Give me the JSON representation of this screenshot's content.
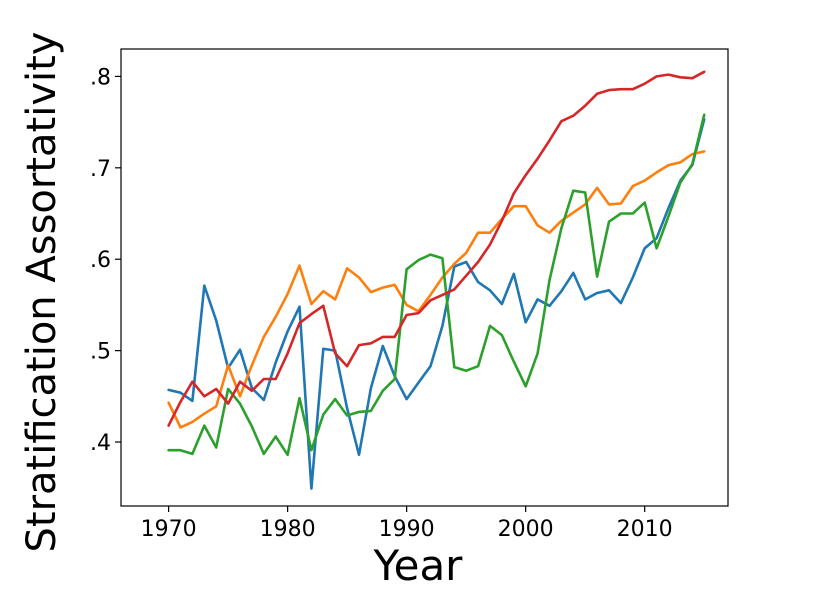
{
  "chart_data": {
    "type": "line",
    "title": "",
    "xlabel": "Year",
    "ylabel": "Stratification Assortativity",
    "xlim": [
      1966,
      2017
    ],
    "ylim": [
      0.33,
      0.83
    ],
    "xticks": [
      1970,
      1980,
      1990,
      2000,
      2010
    ],
    "xtick_labels": [
      "1970",
      "1980",
      "1990",
      "2000",
      "2010"
    ],
    "yticks": [
      0.4,
      0.5,
      0.6,
      0.7,
      0.8
    ],
    "ytick_labels": [
      ".4",
      ".5",
      ".6",
      ".7",
      ".8"
    ],
    "grid": false,
    "legend": "none",
    "x": [
      1970,
      1971,
      1972,
      1973,
      1974,
      1975,
      1976,
      1977,
      1978,
      1979,
      1980,
      1981,
      1982,
      1983,
      1984,
      1985,
      1986,
      1987,
      1988,
      1989,
      1990,
      1991,
      1992,
      1993,
      1994,
      1995,
      1996,
      1997,
      1998,
      1999,
      2000,
      2001,
      2002,
      2003,
      2004,
      2005,
      2006,
      2007,
      2008,
      2009,
      2010,
      2011,
      2012,
      2013,
      2014,
      2015
    ],
    "series": [
      {
        "color": "#1f77b4",
        "values": [
          0.457,
          0.454,
          0.445,
          0.571,
          0.533,
          0.481,
          0.501,
          0.459,
          0.446,
          0.487,
          0.521,
          0.548,
          0.349,
          0.502,
          0.5,
          0.437,
          0.386,
          0.459,
          0.505,
          0.472,
          0.447,
          0.465,
          0.483,
          0.527,
          0.592,
          0.597,
          0.575,
          0.566,
          0.551,
          0.584,
          0.531,
          0.556,
          0.549,
          0.565,
          0.585,
          0.556,
          0.563,
          0.566,
          0.552,
          0.58,
          0.612,
          0.623,
          0.656,
          0.686,
          0.703,
          0.753
        ]
      },
      {
        "color": "#ff7f0e",
        "values": [
          0.443,
          0.416,
          0.422,
          0.431,
          0.439,
          0.484,
          0.45,
          0.484,
          0.515,
          0.537,
          0.562,
          0.593,
          0.551,
          0.565,
          0.556,
          0.59,
          0.58,
          0.564,
          0.569,
          0.572,
          0.55,
          0.543,
          0.561,
          0.58,
          0.595,
          0.607,
          0.629,
          0.629,
          0.644,
          0.658,
          0.658,
          0.637,
          0.629,
          0.642,
          0.651,
          0.66,
          0.678,
          0.66,
          0.661,
          0.68,
          0.686,
          0.695,
          0.703,
          0.706,
          0.715,
          0.718
        ]
      },
      {
        "color": "#2ca02c",
        "values": [
          0.391,
          0.391,
          0.387,
          0.418,
          0.394,
          0.458,
          0.442,
          0.417,
          0.387,
          0.406,
          0.386,
          0.448,
          0.391,
          0.43,
          0.447,
          0.429,
          0.433,
          0.434,
          0.456,
          0.469,
          0.589,
          0.599,
          0.605,
          0.601,
          0.482,
          0.478,
          0.483,
          0.527,
          0.517,
          0.488,
          0.461,
          0.497,
          0.577,
          0.634,
          0.675,
          0.673,
          0.581,
          0.641,
          0.65,
          0.65,
          0.662,
          0.612,
          0.647,
          0.684,
          0.704,
          0.758
        ]
      },
      {
        "color": "#d62728",
        "values": [
          0.418,
          0.444,
          0.466,
          0.45,
          0.458,
          0.442,
          0.466,
          0.456,
          0.469,
          0.469,
          0.497,
          0.53,
          0.54,
          0.549,
          0.497,
          0.483,
          0.506,
          0.508,
          0.515,
          0.515,
          0.539,
          0.541,
          0.555,
          0.561,
          0.567,
          0.582,
          0.597,
          0.616,
          0.642,
          0.672,
          0.692,
          0.71,
          0.73,
          0.751,
          0.757,
          0.768,
          0.781,
          0.785,
          0.786,
          0.786,
          0.792,
          0.8,
          0.802,
          0.799,
          0.798,
          0.805
        ]
      }
    ]
  }
}
